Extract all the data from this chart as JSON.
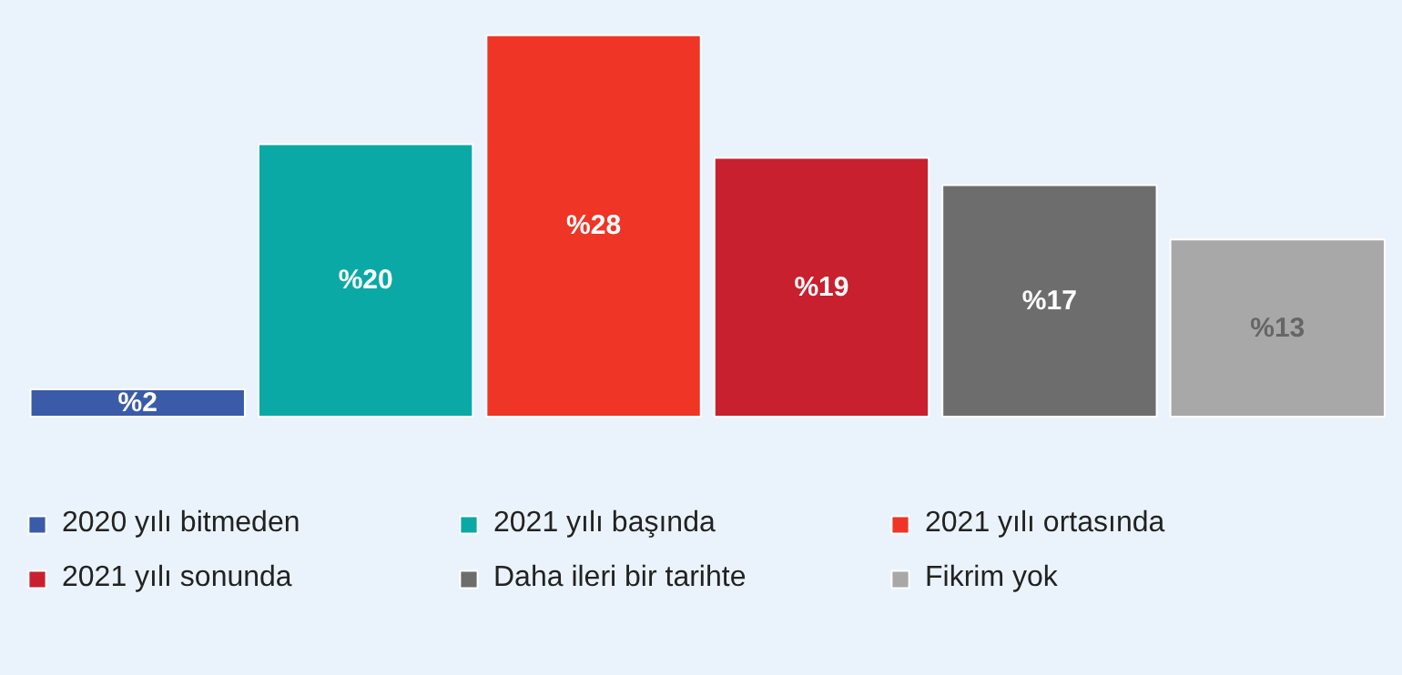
{
  "chart_data": {
    "type": "bar",
    "categories": [
      null
    ],
    "series": [
      {
        "name": "2020 yılı bitmeden",
        "color": "#3a5ca8",
        "values": [
          2
        ],
        "value_labels": [
          "%2"
        ]
      },
      {
        "name": "2021 yılı başında",
        "color": "#0aa9a6",
        "values": [
          20
        ],
        "value_labels": [
          "%20"
        ]
      },
      {
        "name": "2021 yılı ortasında",
        "color": "#ee3526",
        "values": [
          28
        ],
        "value_labels": [
          "%28"
        ]
      },
      {
        "name": "2021 yılı sonunda",
        "color": "#c8202e",
        "values": [
          19
        ],
        "value_labels": [
          "%19"
        ]
      },
      {
        "name": "Daha ileri bir tarihte",
        "color": "#6d6d6d",
        "values": [
          17
        ],
        "value_labels": [
          "%17"
        ]
      },
      {
        "name": "Fikrim yok",
        "color": "#a8a8a8",
        "values": [
          13
        ],
        "value_labels": [
          "%13"
        ]
      }
    ],
    "legend": "bottom"
  }
}
